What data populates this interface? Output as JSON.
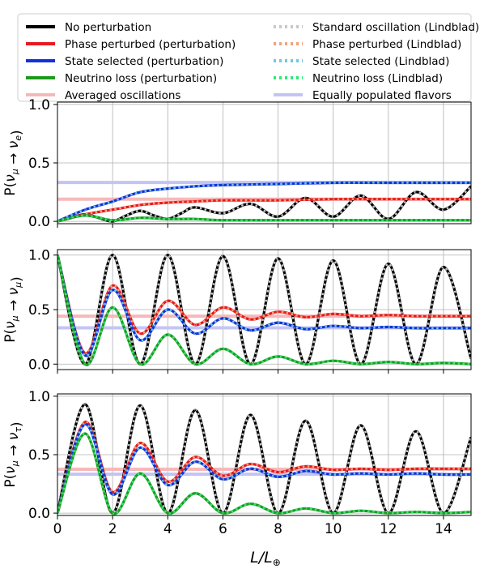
{
  "chart_data": {
    "type": "line",
    "xlabel": "L/L⊕",
    "xlim": [
      0,
      15
    ],
    "x_ticks": [
      0,
      2,
      4,
      6,
      8,
      10,
      12,
      14
    ],
    "grid": true,
    "legend_position": "top",
    "legend": [
      {
        "label": "No perturbation",
        "color": "#000000",
        "style": "solid"
      },
      {
        "label": "Phase perturbed (perturbation)",
        "color": "#e8191f",
        "style": "solid"
      },
      {
        "label": "State selected (perturbation)",
        "color": "#1430d8",
        "style": "solid"
      },
      {
        "label": "Neutrino loss (perturbation)",
        "color": "#1d9a1d",
        "style": "solid"
      },
      {
        "label": "Averaged oscillations",
        "color": "#f6b8b8",
        "style": "solid"
      },
      {
        "label": "Standard oscillation (Lindblad)",
        "color": "#c8c8c8",
        "style": "dotted"
      },
      {
        "label": "Phase perturbed (Lindblad)",
        "color": "#f5a07a",
        "style": "dotted"
      },
      {
        "label": "State selected (Lindblad)",
        "color": "#6fc8e8",
        "style": "dotted"
      },
      {
        "label": "Neutrino loss (Lindblad)",
        "color": "#2ee87a",
        "style": "dotted"
      },
      {
        "label": "Equally populated flavors",
        "color": "#c4c4f4",
        "style": "solid"
      }
    ],
    "panels": [
      {
        "ylabel_prefix": "P(",
        "ylabel_from": "ν",
        "ylabel_from_sub": "μ",
        "ylabel_arrow": " → ",
        "ylabel_to": "ν",
        "ylabel_to_sub": "e",
        "ylabel_suffix": ")",
        "ylim": [
          -0.02,
          1.02
        ],
        "y_ticks": [
          "0.0",
          "0.5",
          "1.0"
        ],
        "y_tick_values": [
          0,
          0.5,
          1.0
        ],
        "averaged_level": 0.19,
        "equal_level": 0.333,
        "series": [
          {
            "name": "No perturbation",
            "x": [
              0,
              0.5,
              1,
              1.5,
              2,
              2.5,
              3,
              3.5,
              4,
              4.5,
              5,
              6,
              7,
              8,
              9,
              10,
              11,
              12,
              13,
              14,
              15
            ],
            "values": [
              0,
              0.03,
              0.06,
              0.03,
              0.0,
              0.05,
              0.09,
              0.05,
              0.02,
              0.07,
              0.12,
              0.07,
              0.15,
              0.04,
              0.2,
              0.04,
              0.22,
              0.02,
              0.25,
              0.1,
              0.3
            ]
          },
          {
            "name": "Phase perturbed (perturbation)",
            "x": [
              0,
              1,
              2,
              3,
              4,
              5,
              6,
              8,
              10,
              12,
              15
            ],
            "values": [
              0,
              0.06,
              0.1,
              0.14,
              0.16,
              0.17,
              0.18,
              0.18,
              0.19,
              0.19,
              0.19
            ]
          },
          {
            "name": "State selected (perturbation)",
            "x": [
              0,
              1,
              2,
              3,
              4,
              5,
              6,
              8,
              10,
              12,
              15
            ],
            "values": [
              0,
              0.1,
              0.17,
              0.25,
              0.28,
              0.3,
              0.31,
              0.32,
              0.33,
              0.33,
              0.33
            ]
          },
          {
            "name": "Neutrino loss (perturbation)",
            "x": [
              0,
              1,
              2,
              3,
              4,
              5,
              6,
              8,
              10,
              12,
              15
            ],
            "values": [
              0,
              0.05,
              0.01,
              0.03,
              0.02,
              0.02,
              0.01,
              0.01,
              0.01,
              0.01,
              0.01
            ]
          }
        ]
      },
      {
        "ylabel_prefix": "P(",
        "ylabel_from": "ν",
        "ylabel_from_sub": "μ",
        "ylabel_arrow": " → ",
        "ylabel_to": "ν",
        "ylabel_to_sub": "μ",
        "ylabel_suffix": ")",
        "ylim": [
          -0.05,
          1.05
        ],
        "y_ticks": [
          "0.0",
          "0.5",
          "1.0"
        ],
        "y_tick_values": [
          0,
          0.5,
          1.0
        ],
        "averaged_level": 0.44,
        "equal_level": 0.333,
        "series": [
          {
            "name": "No perturbation",
            "x": [
              0,
              1,
              2,
              3,
              4,
              5,
              6,
              7,
              8,
              9,
              10,
              11,
              12,
              13,
              14,
              15
            ],
            "values": [
              1.0,
              0.0,
              1.0,
              0.0,
              1.0,
              0.0,
              0.99,
              0.0,
              0.97,
              0.0,
              0.95,
              0.0,
              0.92,
              0.0,
              0.89,
              0.05
            ]
          },
          {
            "name": "Phase perturbed (perturbation)",
            "x": [
              0,
              1,
              2,
              3,
              4,
              5,
              6,
              7,
              8,
              9,
              10,
              11,
              12,
              13,
              14,
              15
            ],
            "values": [
              1.0,
              0.1,
              0.72,
              0.28,
              0.58,
              0.36,
              0.52,
              0.41,
              0.48,
              0.43,
              0.46,
              0.44,
              0.45,
              0.44,
              0.44,
              0.44
            ]
          },
          {
            "name": "State selected (perturbation)",
            "x": [
              0,
              1,
              2,
              3,
              4,
              5,
              6,
              7,
              8,
              9,
              10,
              11,
              12,
              13,
              14,
              15
            ],
            "values": [
              1.0,
              0.08,
              0.68,
              0.22,
              0.5,
              0.28,
              0.42,
              0.31,
              0.38,
              0.32,
              0.35,
              0.33,
              0.34,
              0.33,
              0.33,
              0.33
            ]
          },
          {
            "name": "Neutrino loss (perturbation)",
            "x": [
              0,
              1,
              2,
              3,
              4,
              5,
              6,
              7,
              8,
              9,
              10,
              11,
              12,
              13,
              14,
              15
            ],
            "values": [
              1.0,
              0.0,
              0.52,
              0.0,
              0.27,
              0.0,
              0.14,
              0.0,
              0.07,
              0.0,
              0.03,
              0.0,
              0.02,
              0.0,
              0.01,
              0.0
            ]
          }
        ]
      },
      {
        "ylabel_prefix": "P(",
        "ylabel_from": "ν",
        "ylabel_from_sub": "μ",
        "ylabel_arrow": " → ",
        "ylabel_to": "ν",
        "ylabel_to_sub": "τ",
        "ylabel_suffix": ")",
        "ylim": [
          -0.02,
          1.02
        ],
        "y_ticks": [
          "0.0",
          "0.5",
          "1.0"
        ],
        "y_tick_values": [
          0,
          0.5,
          1.0
        ],
        "averaged_level": 0.375,
        "equal_level": 0.333,
        "series": [
          {
            "name": "No perturbation",
            "x": [
              0,
              1,
              2,
              3,
              4,
              5,
              6,
              7,
              8,
              9,
              10,
              11,
              12,
              13,
              14,
              15
            ],
            "values": [
              0.0,
              0.93,
              0.0,
              0.92,
              0.0,
              0.88,
              0.0,
              0.84,
              0.0,
              0.79,
              0.0,
              0.75,
              0.0,
              0.7,
              0.0,
              0.65
            ]
          },
          {
            "name": "Phase perturbed (perturbation)",
            "x": [
              0,
              1,
              2,
              3,
              4,
              5,
              6,
              7,
              8,
              9,
              10,
              11,
              12,
              13,
              14,
              15
            ],
            "values": [
              0.0,
              0.78,
              0.18,
              0.6,
              0.27,
              0.48,
              0.32,
              0.42,
              0.35,
              0.4,
              0.37,
              0.38,
              0.37,
              0.38,
              0.38,
              0.38
            ]
          },
          {
            "name": "State selected (perturbation)",
            "x": [
              0,
              1,
              2,
              3,
              4,
              5,
              6,
              7,
              8,
              9,
              10,
              11,
              12,
              13,
              14,
              15
            ],
            "values": [
              0.0,
              0.76,
              0.16,
              0.56,
              0.24,
              0.44,
              0.29,
              0.38,
              0.31,
              0.36,
              0.33,
              0.34,
              0.33,
              0.34,
              0.33,
              0.33
            ]
          },
          {
            "name": "Neutrino loss (perturbation)",
            "x": [
              0,
              1,
              2,
              3,
              4,
              5,
              6,
              7,
              8,
              9,
              10,
              11,
              12,
              13,
              14,
              15
            ],
            "values": [
              0.0,
              0.68,
              0.0,
              0.34,
              0.0,
              0.17,
              0.0,
              0.08,
              0.0,
              0.04,
              0.0,
              0.02,
              0.0,
              0.01,
              0.0,
              0.01
            ]
          }
        ]
      }
    ]
  }
}
